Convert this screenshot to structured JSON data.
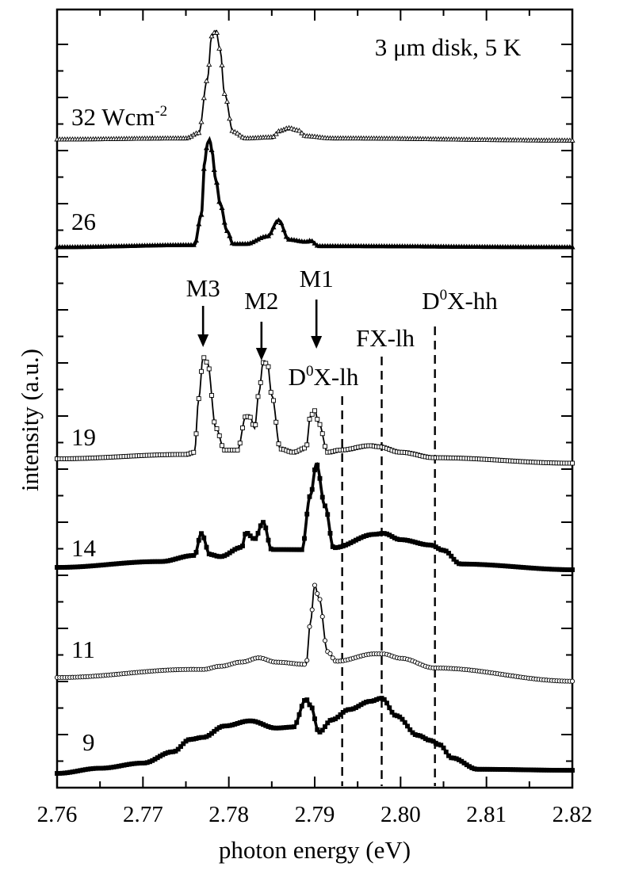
{
  "chart_data": {
    "type": "line",
    "title": "",
    "annotation_text": "3 μm disk, 5 K",
    "xlabel": "photon energy (eV)",
    "ylabel": "intensity (a.u.)",
    "xlim": [
      2.76,
      2.82
    ],
    "x_ticks": [
      "2.76",
      "2.77",
      "2.78",
      "2.79",
      "2.80",
      "2.81",
      "2.82"
    ],
    "grid": false,
    "legend": "none",
    "series_offset_note": "spectra vertically offset",
    "series": [
      {
        "name": "32 Wcm-2",
        "label_main": "32 Wcm",
        "label_sup": "-2",
        "marker": "triangle-open",
        "color": "#000000",
        "x": [
          2.76,
          2.775,
          2.7765,
          2.7775,
          2.778,
          2.7785,
          2.779,
          2.7795,
          2.7805,
          2.782,
          2.785,
          2.786,
          2.787,
          2.788,
          2.789,
          2.792,
          2.82
        ],
        "y": [
          0.0,
          0.01,
          0.06,
          0.55,
          0.95,
          1.0,
          0.82,
          0.42,
          0.07,
          0.01,
          0.02,
          0.08,
          0.105,
          0.085,
          0.03,
          0.01,
          -0.01
        ]
      },
      {
        "name": "26",
        "label_main": "26",
        "label_sup": "",
        "marker": "triangle-filled",
        "color": "#000000",
        "x": [
          2.76,
          2.776,
          2.7768,
          2.7772,
          2.7775,
          2.7778,
          2.778,
          2.7785,
          2.779,
          2.7798,
          2.7805,
          2.782,
          2.7845,
          2.7858,
          2.787,
          2.789,
          2.7895,
          2.7905,
          2.82
        ],
        "y": [
          0.0,
          0.02,
          0.3,
          0.8,
          0.96,
          1.0,
          0.9,
          0.62,
          0.4,
          0.15,
          0.03,
          0.03,
          0.1,
          0.25,
          0.07,
          0.05,
          0.06,
          0.01,
          0.0
        ]
      },
      {
        "name": "19",
        "label_main": "19",
        "label_sup": "",
        "marker": "square-open",
        "color": "#000000",
        "x": [
          2.76,
          2.775,
          2.776,
          2.7765,
          2.777,
          2.7775,
          2.7785,
          2.7795,
          2.781,
          2.782,
          2.7825,
          2.783,
          2.7835,
          2.784,
          2.7845,
          2.785,
          2.786,
          2.7875,
          2.789,
          2.7895,
          2.79,
          2.7905,
          2.7915,
          2.793,
          2.7965,
          2.7975,
          2.8,
          2.804,
          2.82
        ],
        "y": [
          0.0,
          0.04,
          0.06,
          0.55,
          0.93,
          0.88,
          0.28,
          0.08,
          0.08,
          0.39,
          0.38,
          0.28,
          0.6,
          0.88,
          0.87,
          0.58,
          0.09,
          0.06,
          0.1,
          0.39,
          0.44,
          0.32,
          0.06,
          0.08,
          0.12,
          0.11,
          0.06,
          0.01,
          -0.04
        ]
      },
      {
        "name": "14",
        "label_main": "14",
        "label_sup": "",
        "marker": "square-filled",
        "color": "#000000",
        "x": [
          2.76,
          2.772,
          2.776,
          2.7768,
          2.7778,
          2.779,
          2.7815,
          2.782,
          2.783,
          2.784,
          2.785,
          2.7885,
          2.7895,
          2.7902,
          2.7912,
          2.7922,
          2.797,
          2.798,
          2.8,
          2.8035,
          2.805,
          2.807,
          2.82
        ],
        "y": [
          0.0,
          0.06,
          0.12,
          0.33,
          0.13,
          0.11,
          0.2,
          0.34,
          0.28,
          0.44,
          0.18,
          0.18,
          0.7,
          1.0,
          0.6,
          0.2,
          0.33,
          0.34,
          0.28,
          0.23,
          0.18,
          0.05,
          0.0
        ]
      },
      {
        "name": "11",
        "label_main": "11",
        "label_sup": "",
        "marker": "circle-open",
        "color": "#000000",
        "x": [
          2.76,
          2.776,
          2.777,
          2.779,
          2.7815,
          2.7835,
          2.7855,
          2.789,
          2.7895,
          2.79,
          2.7905,
          2.7915,
          2.7925,
          2.797,
          2.798,
          2.8,
          2.804,
          2.82
        ],
        "y": [
          0.0,
          0.08,
          0.08,
          0.11,
          0.15,
          0.19,
          0.15,
          0.13,
          0.52,
          0.87,
          0.75,
          0.25,
          0.16,
          0.23,
          0.23,
          0.19,
          0.1,
          -0.02
        ]
      },
      {
        "name": "9",
        "label_main": "9",
        "label_sup": "",
        "marker": "square-filled",
        "color": "#000000",
        "x": [
          2.76,
          2.765,
          2.77,
          2.7735,
          2.7755,
          2.777,
          2.7795,
          2.7825,
          2.7855,
          2.7875,
          2.789,
          2.7895,
          2.7905,
          2.792,
          2.794,
          2.7965,
          2.7978,
          2.7995,
          2.802,
          2.8035,
          2.8045,
          2.806,
          2.809,
          2.82
        ],
        "y": [
          0.0,
          0.05,
          0.1,
          0.21,
          0.33,
          0.35,
          0.46,
          0.51,
          0.44,
          0.45,
          0.72,
          0.66,
          0.4,
          0.52,
          0.62,
          0.7,
          0.73,
          0.56,
          0.37,
          0.32,
          0.28,
          0.15,
          0.04,
          0.03
        ]
      }
    ],
    "peak_labels": [
      {
        "label": "M3",
        "x": 2.777
      },
      {
        "label": "M2",
        "x": 2.7838
      },
      {
        "label": "M1",
        "x": 2.7902
      }
    ],
    "reference_lines": [
      {
        "label_main": "D",
        "label_sup": "0",
        "label_rest": "X-lh",
        "x": 2.7932
      },
      {
        "label_main": "FX-lh",
        "label_sup": "",
        "label_rest": "",
        "x": 2.7978
      },
      {
        "label_main": "D",
        "label_sup": "0",
        "label_rest": "X-hh",
        "x": 2.804
      }
    ]
  }
}
